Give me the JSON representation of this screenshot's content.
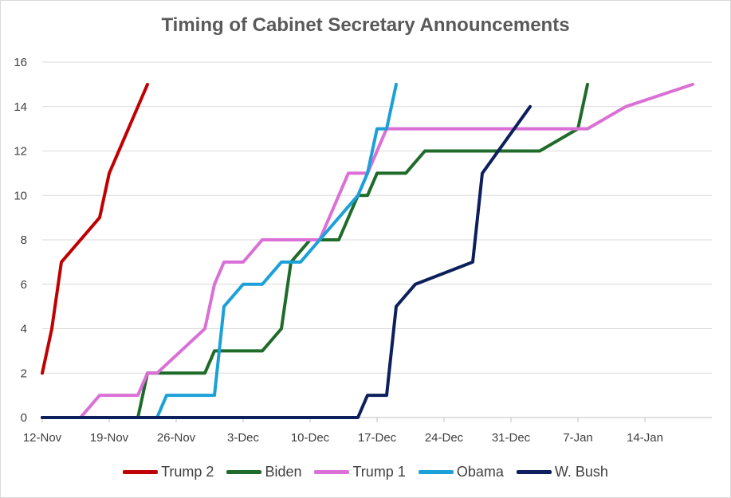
{
  "chart_data": {
    "type": "line",
    "title": "Timing of Cabinet Secretary Announcements",
    "xlabel": "",
    "ylabel": "",
    "x_axis": {
      "start": "2000-11-12",
      "end": "2001-01-21",
      "tick_labels": [
        "12-Nov",
        "19-Nov",
        "26-Nov",
        "3-Dec",
        "10-Dec",
        "17-Dec",
        "24-Dec",
        "31-Dec",
        "7-Jan",
        "14-Jan"
      ],
      "tick_dates": [
        "2000-11-12",
        "2000-11-19",
        "2000-11-26",
        "2000-12-03",
        "2000-12-10",
        "2000-12-17",
        "2000-12-24",
        "2000-12-31",
        "2001-01-07",
        "2001-01-14"
      ]
    },
    "ylim": [
      0,
      16
    ],
    "yticks": [
      0,
      2,
      4,
      6,
      8,
      10,
      12,
      14,
      16
    ],
    "grid": true,
    "legend_position": "bottom",
    "series": [
      {
        "name": "Trump 2",
        "color": "#c00000",
        "points": [
          [
            "2000-11-12",
            2
          ],
          [
            "2000-11-13",
            4
          ],
          [
            "2000-11-14",
            7
          ],
          [
            "2000-11-18",
            9
          ],
          [
            "2000-11-19",
            11
          ],
          [
            "2000-11-23",
            15
          ]
        ]
      },
      {
        "name": "Biden",
        "color": "#1f6b2a",
        "points": [
          [
            "2000-11-12",
            0
          ],
          [
            "2000-11-22",
            0
          ],
          [
            "2000-11-23",
            2
          ],
          [
            "2000-11-29",
            2
          ],
          [
            "2000-11-30",
            3
          ],
          [
            "2000-12-05",
            3
          ],
          [
            "2000-12-07",
            4
          ],
          [
            "2000-12-08",
            7
          ],
          [
            "2000-12-10",
            8
          ],
          [
            "2000-12-13",
            8
          ],
          [
            "2000-12-15",
            10
          ],
          [
            "2000-12-16",
            10
          ],
          [
            "2000-12-17",
            11
          ],
          [
            "2000-12-20",
            11
          ],
          [
            "2000-12-22",
            12
          ],
          [
            "2001-01-03",
            12
          ],
          [
            "2001-01-07",
            13
          ],
          [
            "2001-01-08",
            15
          ]
        ]
      },
      {
        "name": "Trump 1",
        "color": "#da70d6",
        "points": [
          [
            "2000-11-12",
            0
          ],
          [
            "2000-11-16",
            0
          ],
          [
            "2000-11-18",
            1
          ],
          [
            "2000-11-22",
            1
          ],
          [
            "2000-11-23",
            2
          ],
          [
            "2000-11-24",
            2
          ],
          [
            "2000-11-29",
            4
          ],
          [
            "2000-11-30",
            6
          ],
          [
            "2000-12-01",
            7
          ],
          [
            "2000-12-03",
            7
          ],
          [
            "2000-12-05",
            8
          ],
          [
            "2000-12-11",
            8
          ],
          [
            "2000-12-14",
            11
          ],
          [
            "2000-12-16",
            11
          ],
          [
            "2000-12-18",
            13
          ],
          [
            "2001-01-08",
            13
          ],
          [
            "2001-01-12",
            14
          ],
          [
            "2001-01-19",
            15
          ]
        ]
      },
      {
        "name": "Obama",
        "color": "#1ba1d8",
        "points": [
          [
            "2000-11-12",
            0
          ],
          [
            "2000-11-24",
            0
          ],
          [
            "2000-11-25",
            1
          ],
          [
            "2000-11-30",
            1
          ],
          [
            "2000-12-01",
            5
          ],
          [
            "2000-12-03",
            6
          ],
          [
            "2000-12-05",
            6
          ],
          [
            "2000-12-07",
            7
          ],
          [
            "2000-12-09",
            7
          ],
          [
            "2000-12-11",
            8
          ],
          [
            "2000-12-15",
            10
          ],
          [
            "2000-12-16",
            11
          ],
          [
            "2000-12-17",
            13
          ],
          [
            "2000-12-18",
            13
          ],
          [
            "2000-12-19",
            15
          ]
        ]
      },
      {
        "name": "W. Bush",
        "color": "#0d1f5c",
        "points": [
          [
            "2000-11-12",
            0
          ],
          [
            "2000-12-15",
            0
          ],
          [
            "2000-12-16",
            1
          ],
          [
            "2000-12-18",
            1
          ],
          [
            "2000-12-19",
            5
          ],
          [
            "2000-12-21",
            6
          ],
          [
            "2000-12-27",
            7
          ],
          [
            "2000-12-28",
            11
          ],
          [
            "2001-01-02",
            14
          ]
        ]
      }
    ]
  }
}
